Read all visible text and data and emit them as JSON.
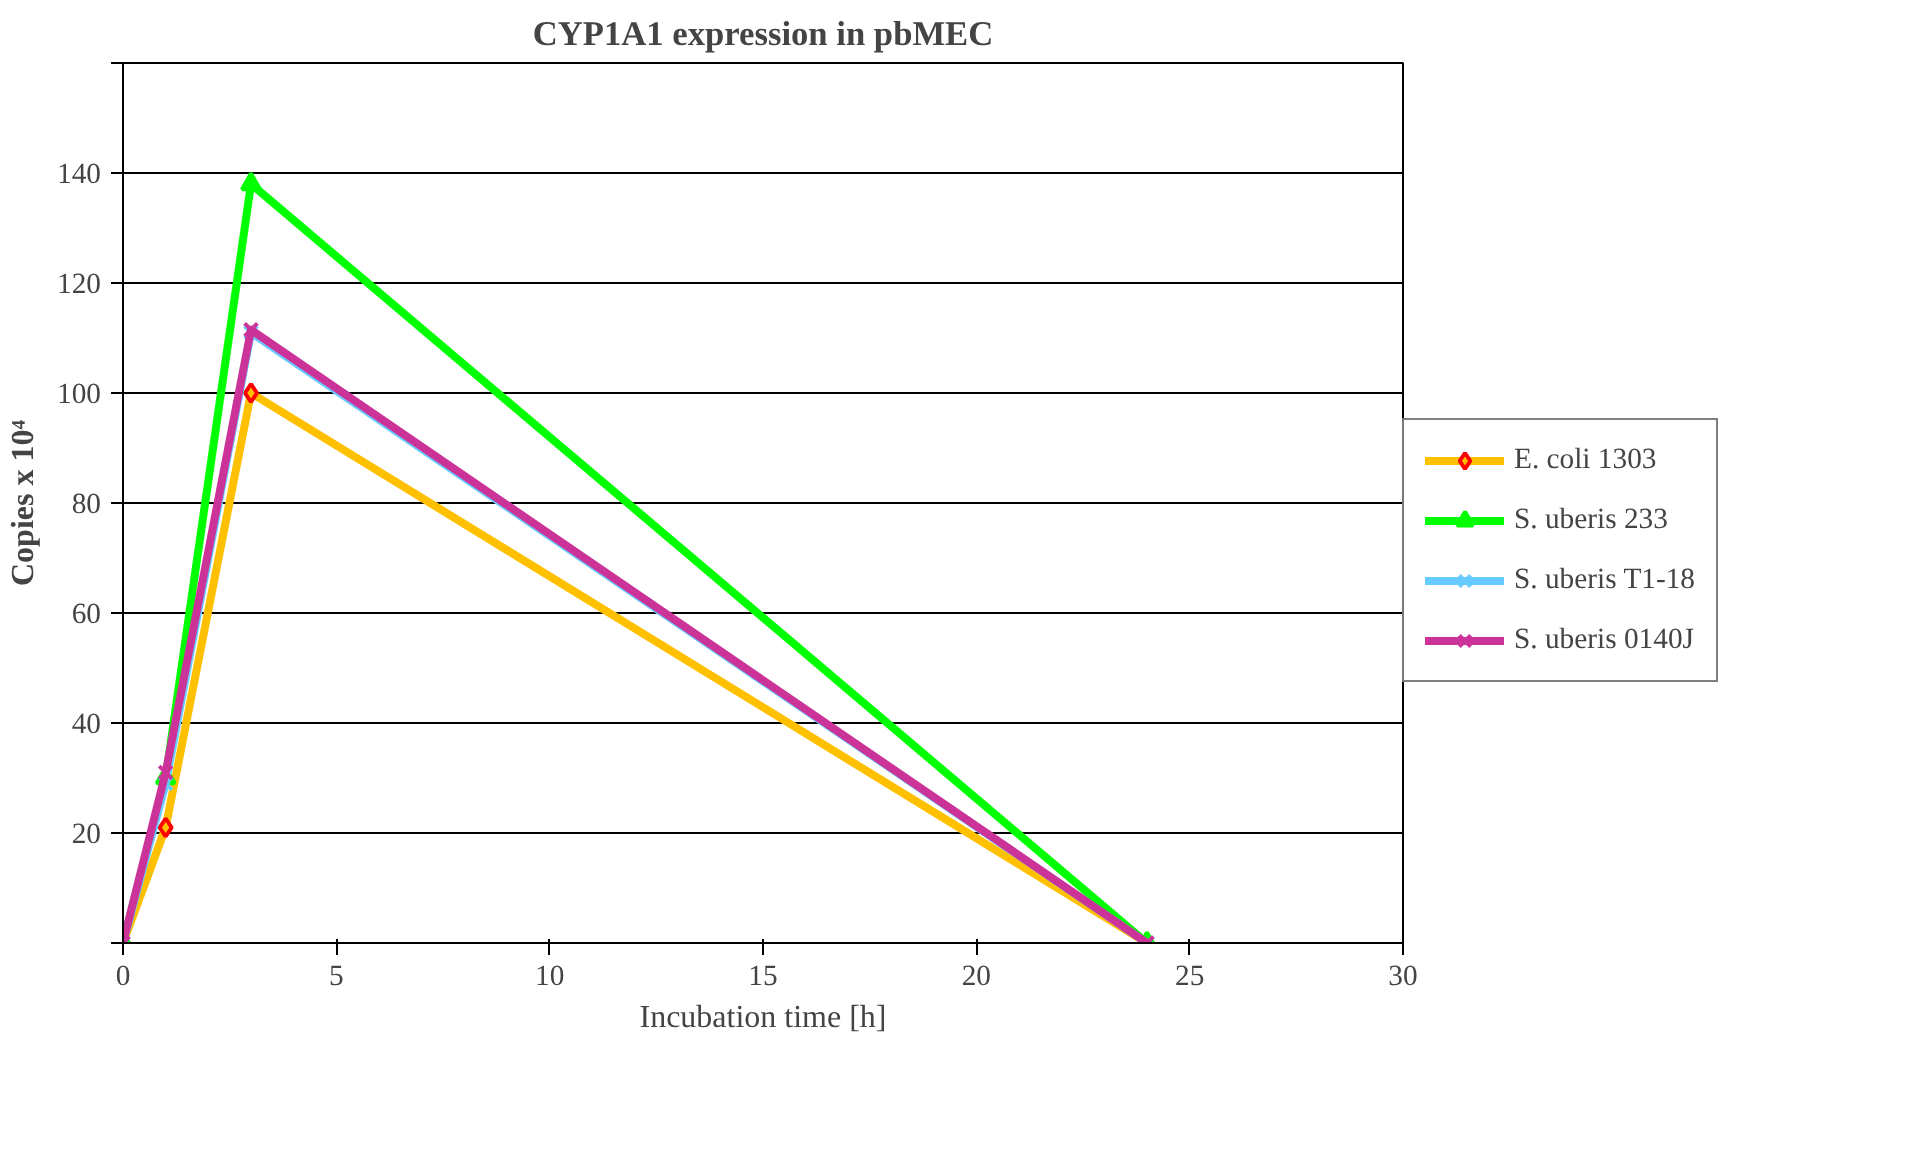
{
  "chart_data": {
    "type": "line",
    "title": "CYP1A1 expression in pbMEC",
    "xlabel": "Incubation time [h]",
    "ylabel": "Copies x 10⁴",
    "x": [
      0,
      1,
      3,
      24
    ],
    "series": [
      {
        "name": "E. coli 1303",
        "color": "#ffc000",
        "values": [
          0,
          21,
          100,
          0
        ],
        "marker": "diamond"
      },
      {
        "name": "S. uberis 233",
        "color": "#00ff00",
        "values": [
          0,
          30,
          138,
          0
        ],
        "marker": "triangle"
      },
      {
        "name": "S. uberis T1-18",
        "color": "#66ccff",
        "values": [
          0,
          29,
          111,
          0
        ],
        "marker": "cross"
      },
      {
        "name": "S. uberis 0140J",
        "color": "#cc3399",
        "values": [
          0,
          31,
          111.5,
          0
        ],
        "marker": "cross"
      }
    ],
    "xlim": [
      0,
      30
    ],
    "xticks": [
      0,
      5,
      10,
      15,
      20,
      25,
      30
    ],
    "ylim": [
      0,
      160
    ],
    "yticks": [
      {
        "value": 0,
        "label": null
      },
      20,
      40,
      60,
      80,
      100,
      120,
      140,
      {
        "value": 160,
        "label": null
      }
    ],
    "grid": "y",
    "legend": "right",
    "line_style": "solid"
  }
}
